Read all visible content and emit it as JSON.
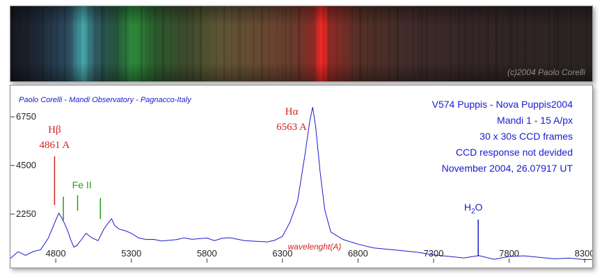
{
  "strip": {
    "copyright": "(c)2004 Paolo Corelli"
  },
  "header": {
    "observer": "Paolo Corelli - Mandi Observatory - Pagnacco-Italy",
    "info_lines": [
      "V574 Puppis - Nova Puppis2004",
      "Mandi 1 - 15 A/px",
      "30 x 30s CCD frames",
      "CCD response not devided",
      "November 2004, 26.07917 UT"
    ]
  },
  "colors": {
    "spectrum_line": "#1a1acc",
    "hydrogen": "#d42020",
    "iron": "#1fa01f",
    "water": "#1a1acc",
    "header_text": "#1a1acc"
  },
  "chart_data": {
    "type": "line",
    "title": "",
    "xlabel": "wavelenght(A)",
    "ylabel": "",
    "xlim": [
      4500,
      8350
    ],
    "ylim": [
      0,
      8200
    ],
    "xticks": [
      4800,
      5300,
      5800,
      6300,
      6800,
      7300,
      7800,
      8300
    ],
    "yticks": [
      2250,
      4500,
      6750
    ],
    "series": [
      {
        "points": [
          [
            4500,
            200
          ],
          [
            4550,
            450
          ],
          [
            4600,
            300
          ],
          [
            4650,
            500
          ],
          [
            4700,
            600
          ],
          [
            4750,
            1150
          ],
          [
            4800,
            2000
          ],
          [
            4820,
            2350
          ],
          [
            4840,
            2150
          ],
          [
            4860,
            1700
          ],
          [
            4880,
            1400
          ],
          [
            4900,
            1000
          ],
          [
            4920,
            700
          ],
          [
            4940,
            800
          ],
          [
            4960,
            1000
          ],
          [
            5000,
            1400
          ],
          [
            5040,
            1200
          ],
          [
            5080,
            1100
          ],
          [
            5120,
            1500
          ],
          [
            5150,
            1800
          ],
          [
            5169,
            2000
          ],
          [
            5190,
            1700
          ],
          [
            5220,
            1550
          ],
          [
            5260,
            1500
          ],
          [
            5300,
            1400
          ],
          [
            5350,
            1200
          ],
          [
            5400,
            1150
          ],
          [
            5450,
            1000
          ],
          [
            5500,
            950
          ],
          [
            5550,
            1000
          ],
          [
            5600,
            1050
          ],
          [
            5650,
            1150
          ],
          [
            5700,
            1100
          ],
          [
            5750,
            1150
          ],
          [
            5800,
            1200
          ],
          [
            5850,
            1100
          ],
          [
            5900,
            1050
          ],
          [
            5950,
            1100
          ],
          [
            6000,
            1050
          ],
          [
            6050,
            1000
          ],
          [
            6100,
            1000
          ],
          [
            6150,
            1000
          ],
          [
            6200,
            1000
          ],
          [
            6250,
            1100
          ],
          [
            6300,
            1300
          ],
          [
            6350,
            1800
          ],
          [
            6400,
            2800
          ],
          [
            6450,
            5000
          ],
          [
            6480,
            6500
          ],
          [
            6500,
            7200
          ],
          [
            6520,
            6300
          ],
          [
            6550,
            4200
          ],
          [
            6580,
            2500
          ],
          [
            6620,
            1500
          ],
          [
            6700,
            1000
          ],
          [
            6800,
            800
          ],
          [
            6900,
            650
          ],
          [
            7000,
            600
          ],
          [
            7100,
            550
          ],
          [
            7200,
            500
          ],
          [
            7300,
            400
          ],
          [
            7400,
            350
          ],
          [
            7500,
            300
          ],
          [
            7600,
            250
          ],
          [
            7700,
            100
          ],
          [
            7800,
            250
          ],
          [
            7900,
            300
          ],
          [
            8000,
            250
          ],
          [
            8100,
            200
          ],
          [
            8200,
            250
          ],
          [
            8300,
            200
          ],
          [
            8350,
            150
          ]
        ]
      }
    ],
    "annotations": [
      {
        "label": "Hβ",
        "value": "4861 A",
        "x": 4861,
        "group": "hydrogen"
      },
      {
        "label": "Hα",
        "value": "6563 A",
        "x": 6563,
        "group": "hydrogen"
      },
      {
        "label": "Fe II",
        "x": [
          4924,
          5018,
          5169
        ],
        "group": "iron"
      },
      {
        "label": "H2O",
        "x": 7600,
        "group": "water"
      }
    ]
  }
}
